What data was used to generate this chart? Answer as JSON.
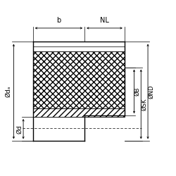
{
  "bg_color": "#ffffff",
  "line_color": "#000000",
  "fig_width": 2.5,
  "fig_height": 2.5,
  "dpi": 100,
  "labels": {
    "b": "b",
    "NL": "NL",
    "da": "Ødₐ",
    "d": "Ød",
    "B": "ØB",
    "SK": "ØSK",
    "ND": "ØND"
  },
  "font_size": 6.5,
  "lw_main": 1.0,
  "lw_thin": 0.5,
  "lw_dim": 0.6
}
